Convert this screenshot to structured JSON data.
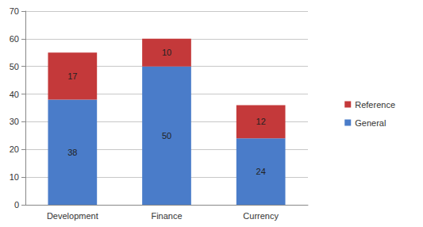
{
  "chart_data": {
    "type": "bar",
    "stacked": true,
    "data_labels": true,
    "grid": true,
    "legend": "right",
    "categories": [
      "Development",
      "Finance",
      "Currency"
    ],
    "series": [
      {
        "name": "General",
        "color": "#4a7cc9",
        "values": [
          38,
          50,
          24
        ]
      },
      {
        "name": "Reference",
        "color": "#c4393a",
        "values": [
          17,
          10,
          12
        ]
      }
    ],
    "ylim": [
      0,
      70
    ],
    "yticks": [
      0,
      10,
      20,
      30,
      40,
      50,
      60,
      70
    ]
  }
}
